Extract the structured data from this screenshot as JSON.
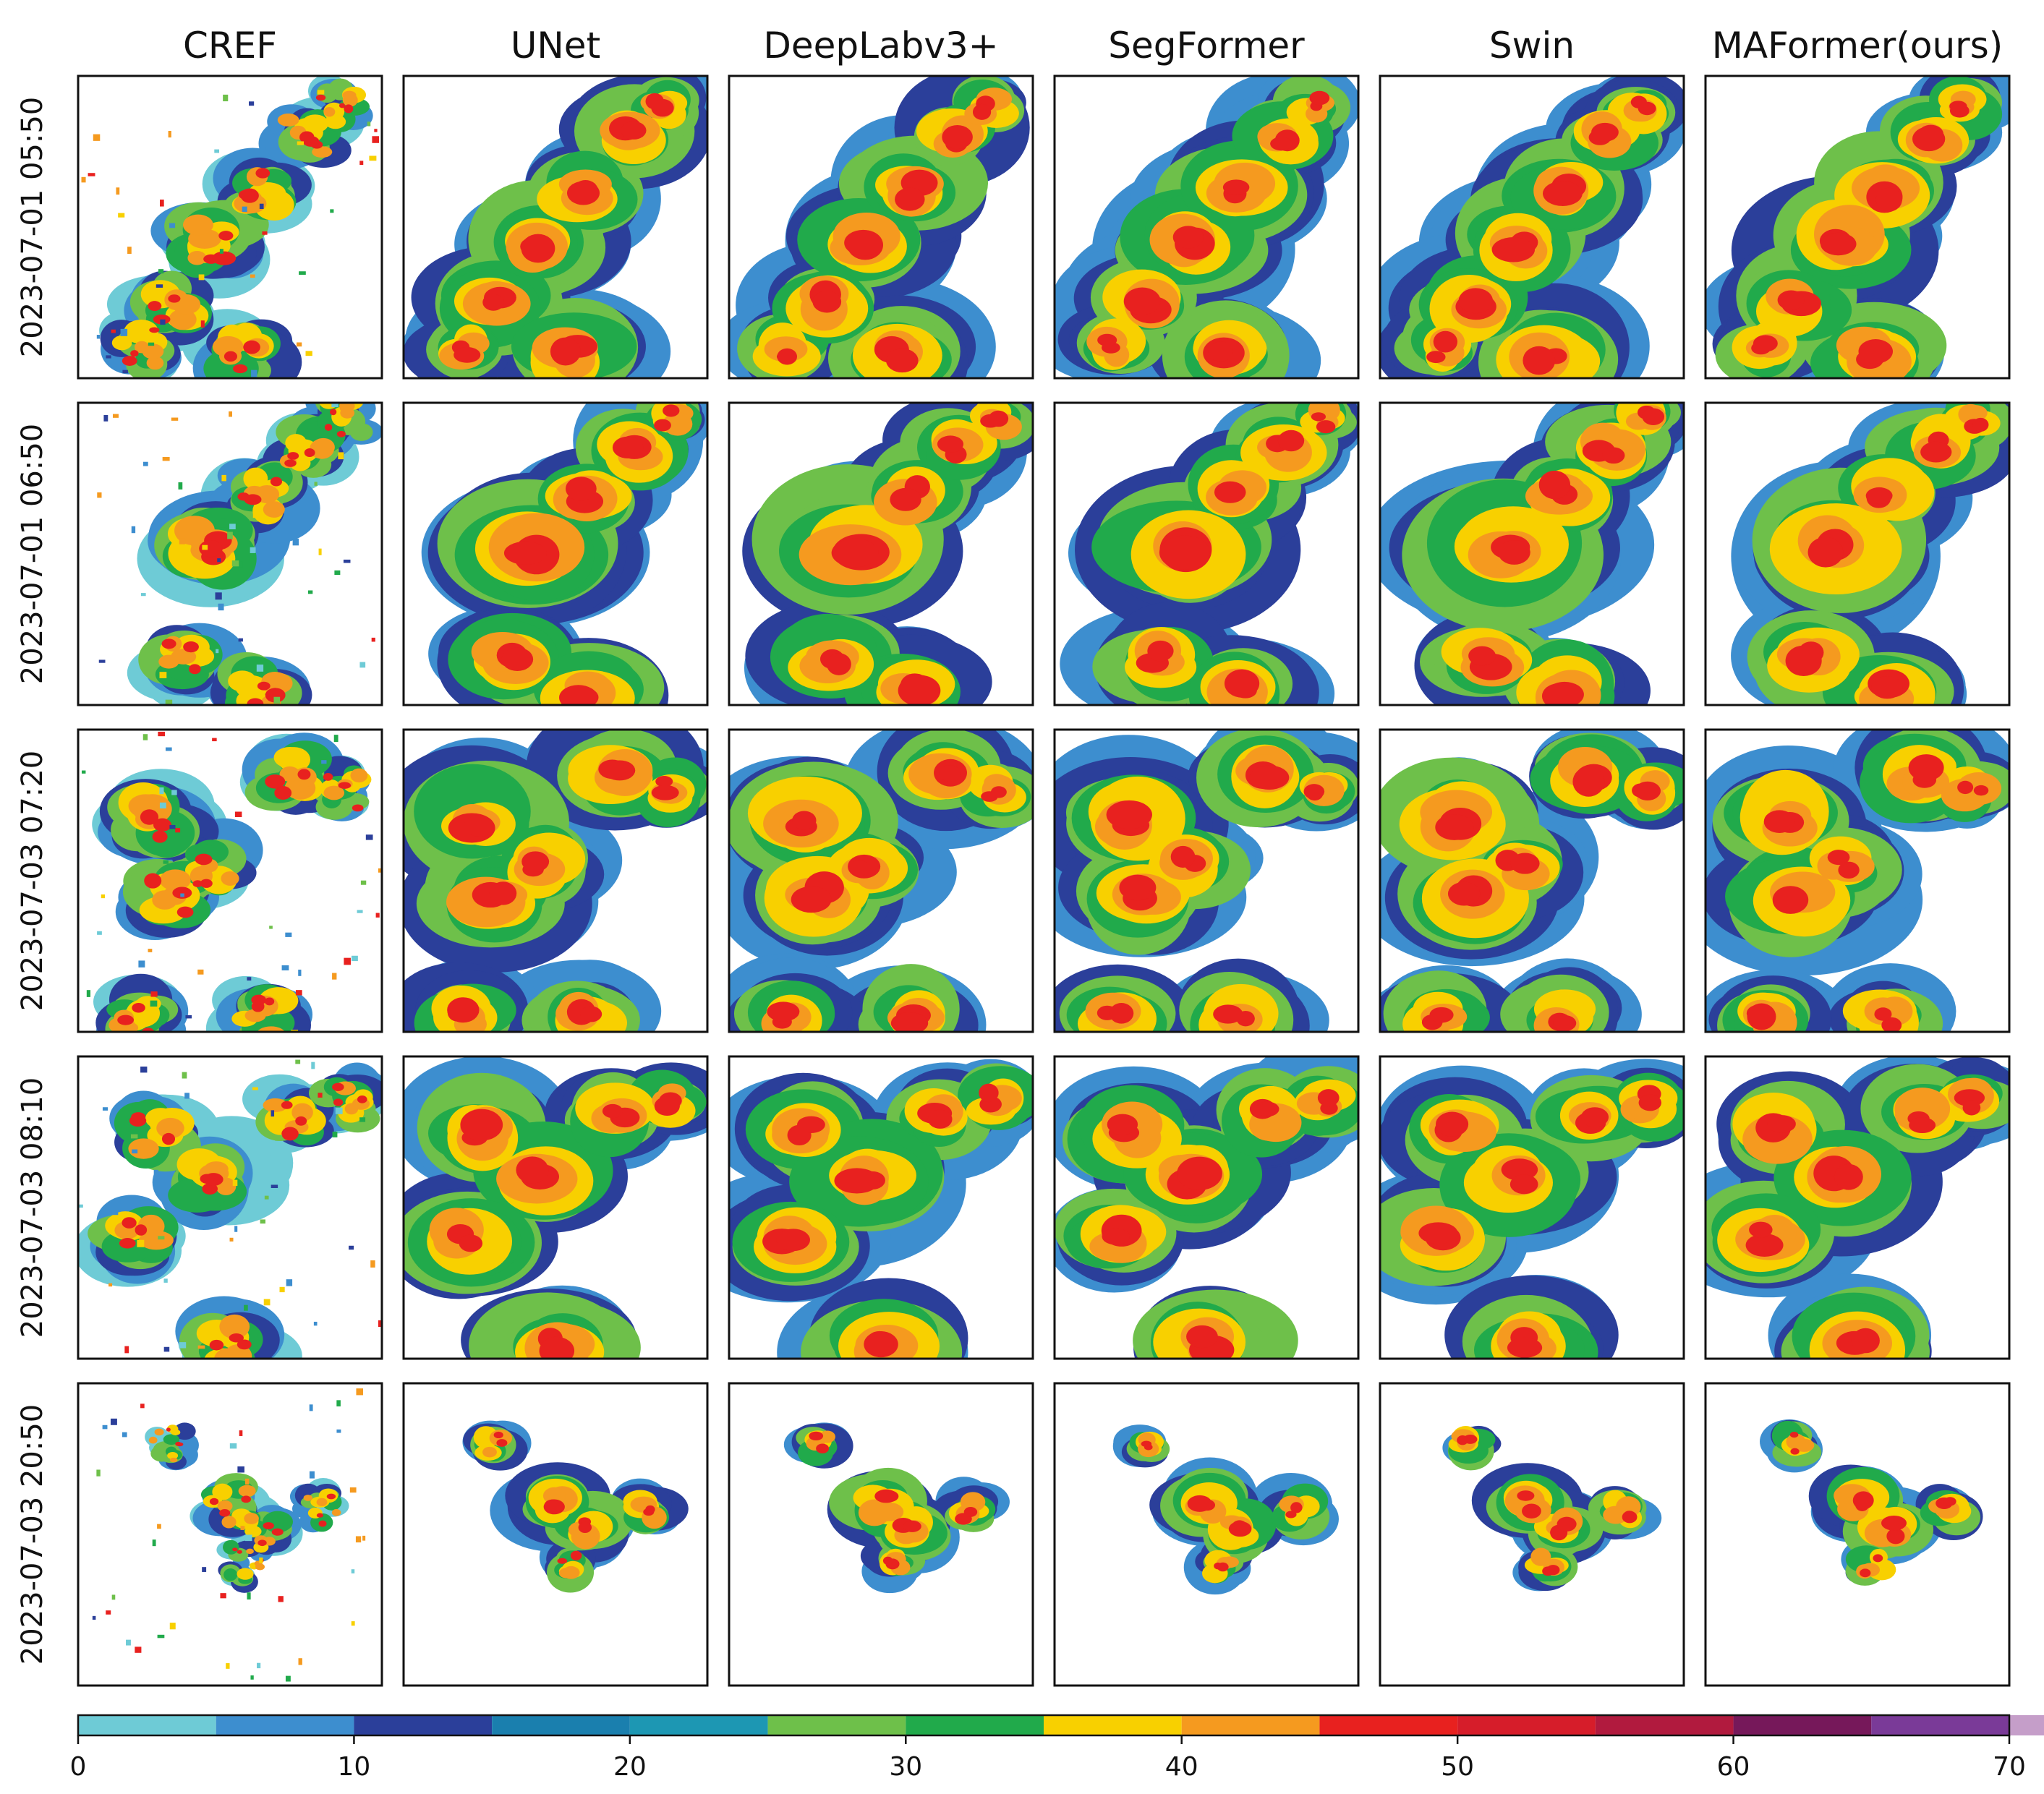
{
  "chart_data": {
    "type": "heatmap",
    "columns": [
      "CREF",
      "UNet",
      "DeepLabv3+",
      "SegFormer",
      "Swin",
      "MAFormer(ours)"
    ],
    "rows": [
      "2023-07-01 05:50",
      "2023-07-01 06:50",
      "2023-07-03 07:20",
      "2023-07-03 08:10",
      "2023-07-03 20:50"
    ],
    "colorbar": {
      "orientation": "horizontal",
      "range": [
        0,
        70
      ],
      "step": 5,
      "ticks": [
        0,
        10,
        20,
        30,
        40,
        50,
        60,
        70
      ],
      "tick_labels": [
        "0",
        "10",
        "20",
        "30",
        "40",
        "50",
        "60",
        "70"
      ],
      "colors": [
        "#6ecbd6",
        "#3d8ecf",
        "#2b3f9a",
        "#1a7fae",
        "#1d97b3",
        "#6ec04a",
        "#21aa4b",
        "#f8d000",
        "#f59a1f",
        "#e8211f",
        "#d61d2a",
        "#b11a3e",
        "#76185a",
        "#7a3a98",
        "#c59ec9"
      ]
    }
  },
  "palette": {
    "levels": [
      "#6ecbd6",
      "#3d8ecf",
      "#2b3f9a",
      "#6ec04a",
      "#21aa4b",
      "#f8d000",
      "#f59a1f",
      "#e8211f"
    ]
  }
}
